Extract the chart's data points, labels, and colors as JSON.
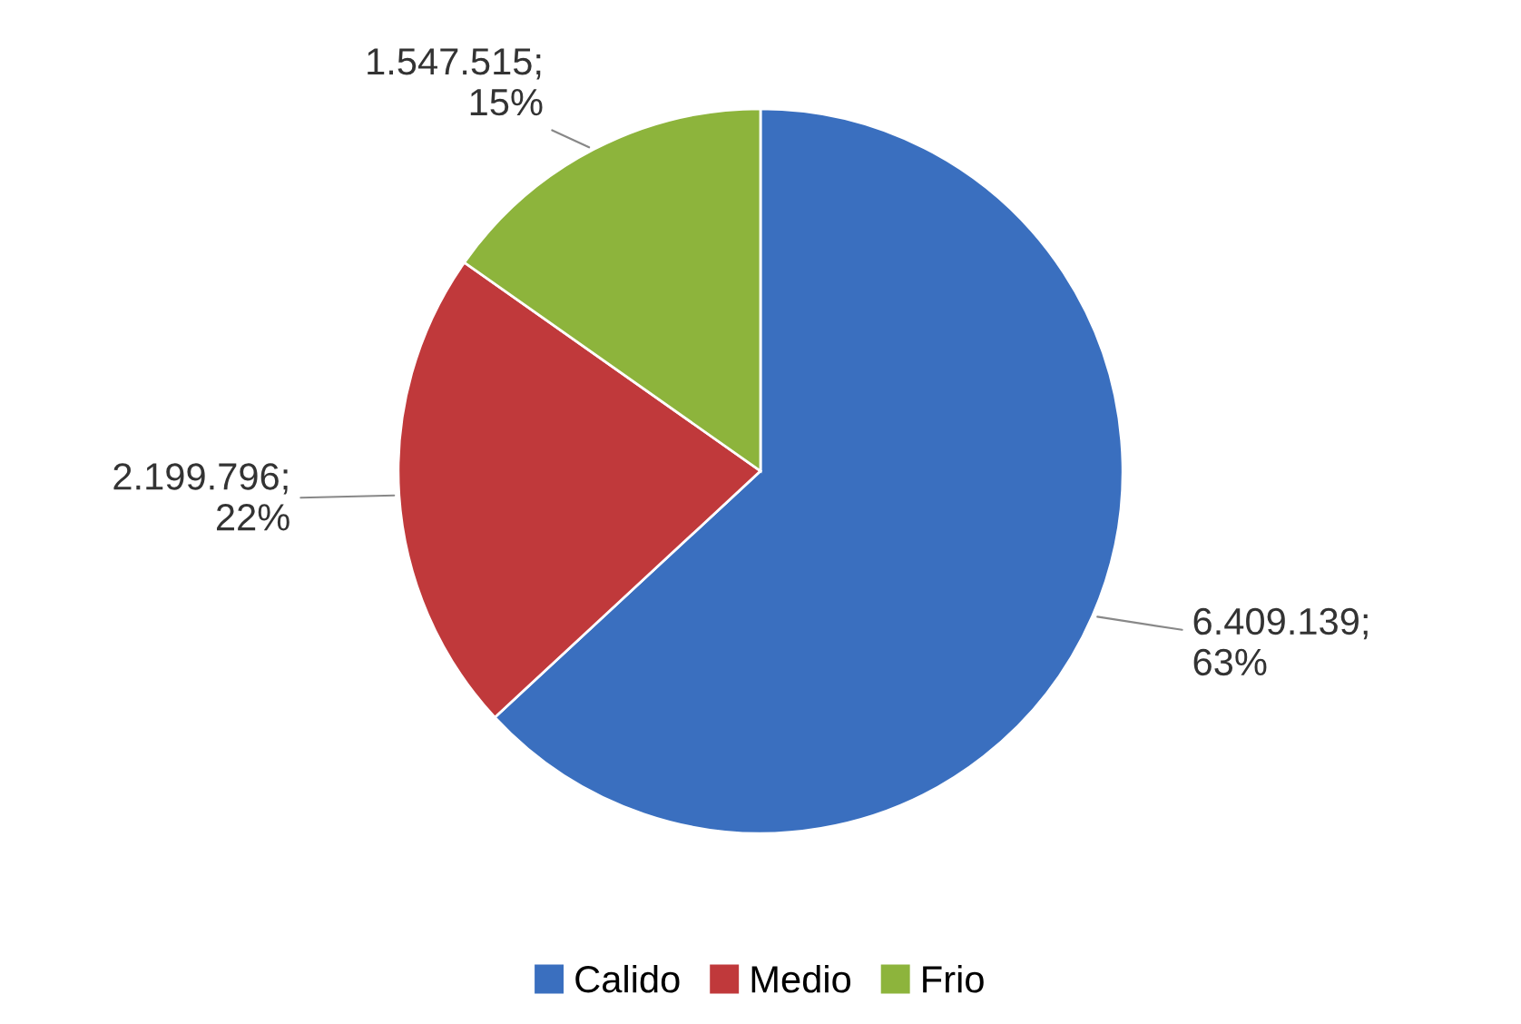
{
  "chart_data": {
    "type": "pie",
    "categories": [
      "Calido",
      "Medio",
      "Frio"
    ],
    "values": [
      6409139,
      2199796,
      1547515
    ],
    "colors": [
      "#3a6fbf",
      "#c0393b",
      "#8db43c"
    ],
    "value_labels": [
      "6.409.139;\n63%",
      "2.199.796;\n22%",
      "1.547.515;\n15%"
    ],
    "legend": "bottom"
  }
}
